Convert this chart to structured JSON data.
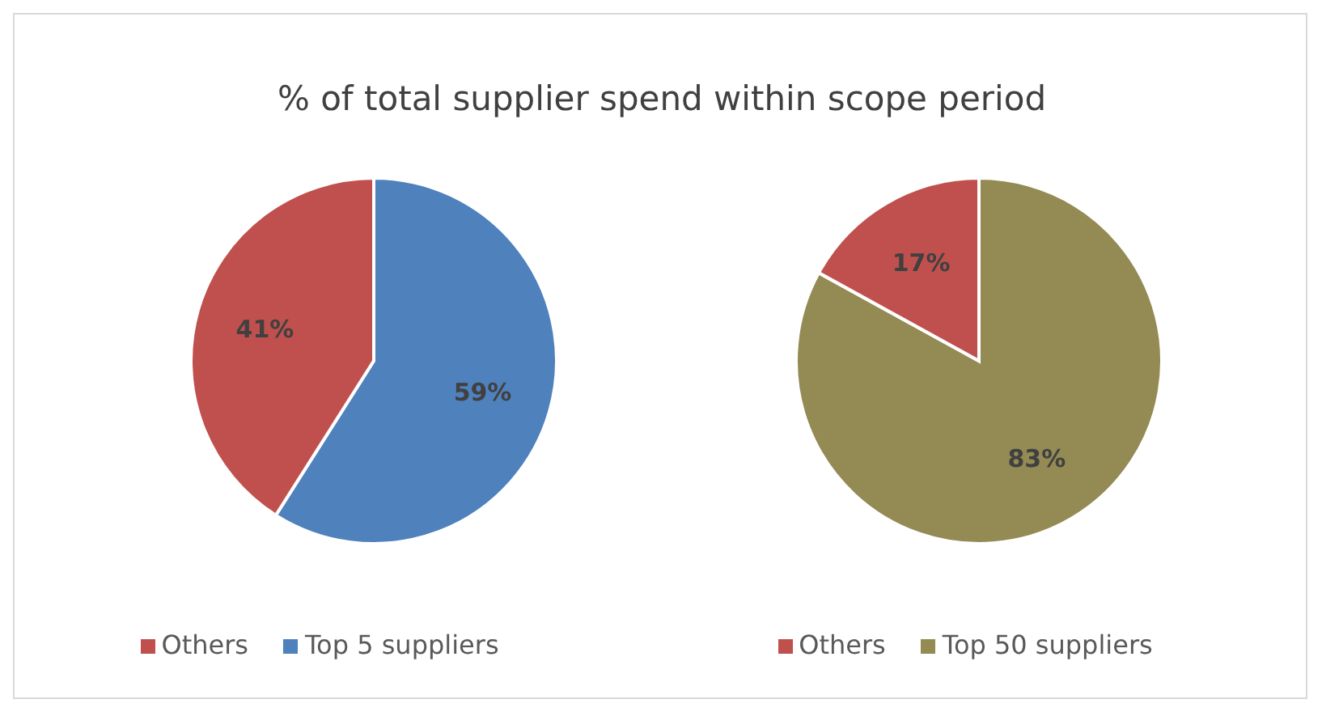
{
  "chart_data": [
    {
      "type": "pie",
      "title": "% of total supplier spend within scope period",
      "categories": [
        "Top 5 suppliers",
        "Others"
      ],
      "values": [
        59,
        41
      ],
      "colors": [
        "#4f81bd",
        "#c0504d"
      ],
      "value_labels": [
        "59%",
        "41%"
      ],
      "legend": "bottom"
    },
    {
      "type": "pie",
      "categories": [
        "Top 50 suppliers",
        "Others"
      ],
      "values": [
        83,
        17
      ],
      "colors": [
        "#948a54",
        "#c0504d"
      ],
      "value_labels": [
        "83%",
        "17%"
      ],
      "legend": "bottom"
    }
  ]
}
